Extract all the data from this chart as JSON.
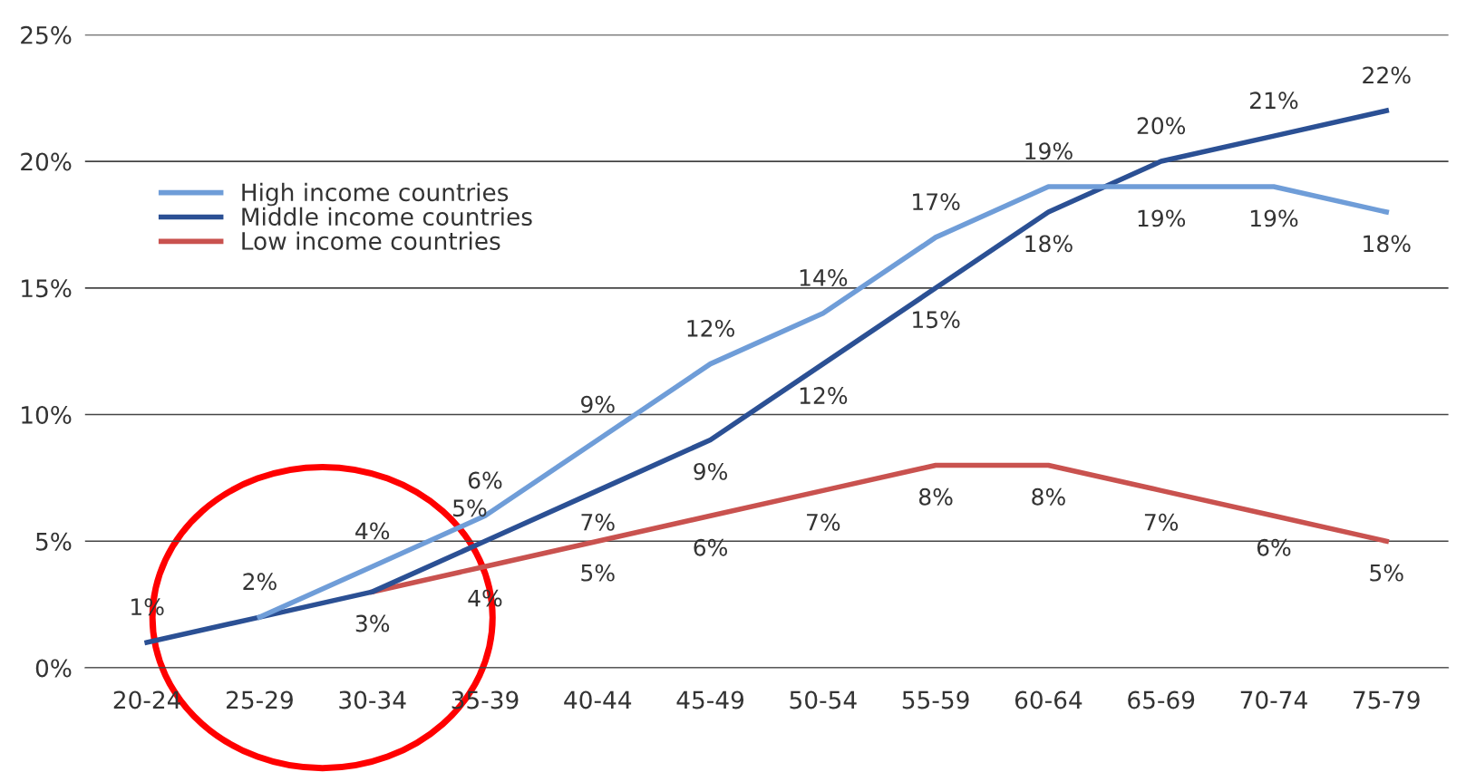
{
  "chart_data": {
    "type": "line",
    "categories": [
      "20-24",
      "25-29",
      "30-34",
      "35-39",
      "40-44",
      "45-49",
      "50-54",
      "55-59",
      "60-64",
      "65-69",
      "70-74",
      "75-79"
    ],
    "series": [
      {
        "name": "High income countries",
        "color": "#6f9dd8",
        "values": [
          null,
          2,
          4,
          6,
          9,
          12,
          14,
          17,
          19,
          19,
          19,
          18
        ],
        "value_labels": [
          null,
          null,
          "4%",
          "6%",
          "9%",
          "12%",
          "14%",
          "17%",
          "19%",
          "19%",
          "19%",
          "18%"
        ]
      },
      {
        "name": "Middle income countries",
        "color": "#2b5094",
        "values": [
          1,
          2,
          3,
          5,
          7,
          9,
          12,
          15,
          18,
          20,
          21,
          22
        ],
        "value_labels": [
          "1%",
          "2%",
          "3%",
          "5%",
          "7%",
          "9%",
          "12%",
          "15%",
          "18%",
          "20%",
          "21%",
          "22%"
        ]
      },
      {
        "name": "Low income countries",
        "color": "#c9524f",
        "values": [
          null,
          null,
          3,
          4,
          5,
          6,
          7,
          8,
          8,
          7,
          6,
          5
        ],
        "value_labels": [
          null,
          null,
          null,
          "4%",
          "5%",
          "6%",
          "7%",
          "8%",
          "8%",
          "7%",
          "6%",
          "5%"
        ]
      }
    ],
    "ylim": [
      0,
      25
    ],
    "yticks": [
      {
        "value": 0,
        "label": "0%"
      },
      {
        "value": 5,
        "label": "5%"
      },
      {
        "value": 10,
        "label": "10%"
      },
      {
        "value": 15,
        "label": "15%"
      },
      {
        "value": 20,
        "label": "20%"
      },
      {
        "value": 25,
        "label": "25%"
      }
    ],
    "grid": "y",
    "legend": "top left",
    "line_style": "solid"
  }
}
